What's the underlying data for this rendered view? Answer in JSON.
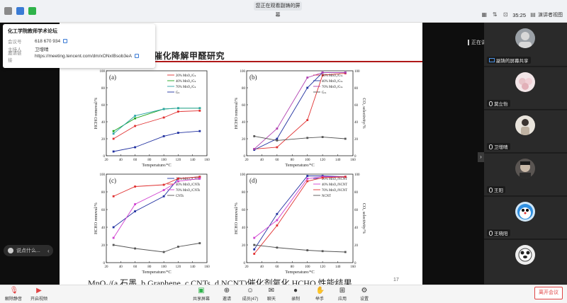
{
  "topbar": {
    "sharing_banner": "您正在观看副铸的屏幕",
    "timer": "35:25",
    "view_label": "演讲者视图"
  },
  "meeting_info": {
    "title": "化工学院教师学术论坛",
    "rows": [
      {
        "label": "会议号",
        "value": "618 670 934"
      },
      {
        "label": "主持人",
        "value": "卫增晴"
      },
      {
        "label": "邀请链接",
        "value": "https://meeting.tencent.com/dm/xONxIBsob3eA"
      }
    ]
  },
  "slide": {
    "title_top": "展",
    "title": "催化降解甲醛研究",
    "caption": "MnO₂/(a.石墨, b.Graphene, c.CNTs, d.NCNT)催化剂氧化 HCHO 性能结果",
    "page": "17"
  },
  "chart_data": [
    {
      "type": "line",
      "panel": "(a)",
      "xlabel": "Temperature/°C",
      "ylabel": "HCHO removal/%",
      "xlim": [
        20,
        160
      ],
      "ylim": [
        0,
        100
      ],
      "x_ticks": [
        20,
        40,
        60,
        80,
        100,
        120,
        140,
        160
      ],
      "y_ticks": [
        0,
        20,
        40,
        60,
        80,
        100
      ],
      "series": [
        {
          "name": "20% MnO₂/Gₖ",
          "color": "#e03030",
          "x": [
            30,
            60,
            100,
            120,
            150
          ],
          "y": [
            20,
            35,
            45,
            52,
            53
          ]
        },
        {
          "name": "40% MnO₂/Gₖ",
          "color": "#1aa31a",
          "x": [
            30,
            60,
            100,
            120,
            150
          ],
          "y": [
            29,
            44,
            55,
            56,
            56
          ]
        },
        {
          "name": "70% MnO₂/Gₖ",
          "color": "#2aa5a5",
          "x": [
            30,
            60,
            100,
            120,
            150
          ],
          "y": [
            26,
            47,
            55,
            56,
            56
          ]
        },
        {
          "name": "Gₖ",
          "color": "#2030a0",
          "x": [
            30,
            60,
            100,
            120,
            150
          ],
          "y": [
            5,
            10,
            23,
            27,
            29
          ]
        }
      ]
    },
    {
      "type": "line",
      "panel": "(b)",
      "xlabel": "Temperature/°C",
      "ylabel": "HCHO removal/%",
      "y2label": "CO₂ selectivity/%",
      "xlim": [
        20,
        160
      ],
      "ylim": [
        0,
        100
      ],
      "x_ticks": [
        20,
        40,
        60,
        80,
        100,
        120,
        140,
        160
      ],
      "y_ticks": [
        0,
        20,
        40,
        60,
        80,
        100
      ],
      "series": [
        {
          "name": "20% MnO₂/Gₘ",
          "color": "#e03030",
          "x": [
            30,
            60,
            100,
            120,
            150
          ],
          "y": [
            8,
            10,
            42,
            95,
            97
          ]
        },
        {
          "name": "40% MnO₂/Gₘ",
          "color": "#2030a0",
          "x": [
            30,
            60,
            100,
            120,
            150
          ],
          "y": [
            7,
            20,
            80,
            98,
            98
          ]
        },
        {
          "name": "70% MnO₂/Gₘ",
          "color": "#b040b0",
          "x": [
            30,
            60,
            100,
            120,
            150
          ],
          "y": [
            8,
            32,
            92,
            98,
            98
          ]
        },
        {
          "name": "Gₘ",
          "color": "#555555",
          "x": [
            30,
            60,
            100,
            120,
            150
          ],
          "y": [
            23,
            18,
            21,
            22,
            20
          ]
        }
      ]
    },
    {
      "type": "line",
      "panel": "(c)",
      "xlabel": "Temperature/°C",
      "ylabel": "HCHO removal/%",
      "xlim": [
        20,
        160
      ],
      "ylim": [
        0,
        100
      ],
      "x_ticks": [
        20,
        40,
        60,
        80,
        100,
        120,
        140,
        160
      ],
      "y_ticks": [
        0,
        20,
        40,
        60,
        80,
        100
      ],
      "series": [
        {
          "name": "20% MnO₂/CNTs",
          "color": "#2030a0",
          "x": [
            30,
            60,
            100,
            120,
            150
          ],
          "y": [
            40,
            58,
            75,
            95,
            97
          ]
        },
        {
          "name": "40% MnO₂/CNTs",
          "color": "#e03030",
          "x": [
            30,
            60,
            100,
            120,
            150
          ],
          "y": [
            75,
            86,
            88,
            95,
            97
          ]
        },
        {
          "name": "70% MnO₂/CNTs",
          "color": "#d040d0",
          "x": [
            30,
            60,
            100,
            120,
            150
          ],
          "y": [
            28,
            66,
            82,
            92,
            95
          ]
        },
        {
          "name": "CNTs",
          "color": "#555555",
          "x": [
            30,
            60,
            100,
            120,
            150
          ],
          "y": [
            20,
            16,
            12,
            18,
            22
          ]
        }
      ]
    },
    {
      "type": "line",
      "panel": "(d)",
      "xlabel": "Temperature/°C",
      "ylabel": "HCHO removal/%",
      "y2label": "CO₂ selectivity/%",
      "xlim": [
        20,
        160
      ],
      "ylim": [
        0,
        100
      ],
      "x_ticks": [
        20,
        40,
        60,
        80,
        100,
        120,
        140,
        160
      ],
      "y_ticks": [
        0,
        20,
        40,
        60,
        80,
        100
      ],
      "series": [
        {
          "name": "20% MnO₂/NCNT",
          "color": "#2030a0",
          "x": [
            30,
            60,
            100,
            120,
            150
          ],
          "y": [
            15,
            55,
            98,
            98,
            97
          ]
        },
        {
          "name": "40% MnO₂/NCNT",
          "color": "#d040d0",
          "x": [
            30,
            60,
            100,
            120,
            150
          ],
          "y": [
            28,
            48,
            95,
            97,
            97
          ]
        },
        {
          "name": "70% MnO₂/NCNT",
          "color": "#e03030",
          "x": [
            30,
            60,
            100,
            120,
            150
          ],
          "y": [
            10,
            42,
            92,
            96,
            97
          ]
        },
        {
          "name": "NCNT",
          "color": "#555555",
          "x": [
            30,
            60,
            100,
            120,
            150
          ],
          "y": [
            20,
            17,
            14,
            13,
            12
          ]
        }
      ]
    }
  ],
  "speaking": {
    "label": "正在讲话：副铸"
  },
  "participants": [
    {
      "name": "副铸的屏幕共享",
      "avatar_color": "#9aa0a6"
    },
    {
      "name": "莫立怡",
      "avatar_color": "#e8c4c9"
    },
    {
      "name": "卫增晴",
      "avatar_color": "#d9cfc4"
    },
    {
      "name": "王阳",
      "avatar_color": "#6f6a66"
    },
    {
      "name": "王晓阳",
      "avatar_color": "#7bb4e6"
    },
    {
      "name": "",
      "avatar_color": "#d0d0d0"
    }
  ],
  "chat": {
    "placeholder": "说点什么..."
  },
  "toolbar": {
    "mute": "解除静音",
    "video": "开启视频",
    "share": "共享屏幕",
    "invite": "邀请",
    "members": "成员(47)",
    "chat": "聊天",
    "record": "录制",
    "raise": "举手",
    "apps": "应用",
    "settings": "设置",
    "leave": "离开会议"
  }
}
